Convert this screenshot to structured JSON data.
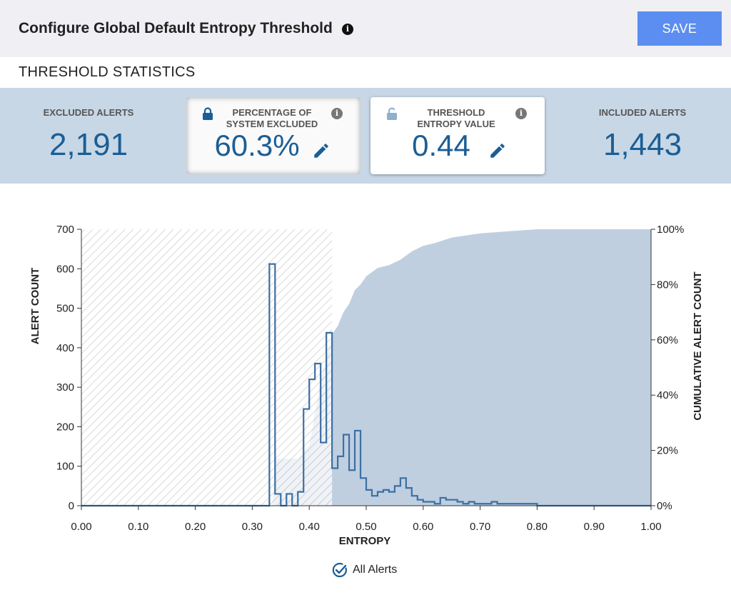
{
  "header": {
    "title": "Configure Global Default Entropy Threshold",
    "save_label": "SAVE"
  },
  "section": {
    "title": "THRESHOLD STATISTICS"
  },
  "stats": {
    "excluded": {
      "label": "EXCLUDED ALERTS",
      "value": "2,191"
    },
    "percentage": {
      "label_line1": "PERCENTAGE OF",
      "label_line2": "SYSTEM EXCLUDED",
      "value": "60.3%"
    },
    "threshold": {
      "label_line1": "THRESHOLD",
      "label_line2": "ENTROPY VALUE",
      "value": "0.44"
    },
    "included": {
      "label": "INCLUDED ALERTS",
      "value": "1,443"
    }
  },
  "colors": {
    "accent": "#1b5e95",
    "save": "#5b8ef0",
    "band": "#c7d7e6",
    "cumulative": "#bfcfe0",
    "histogram": "#3d6fa3"
  },
  "icons": [
    "info-icon",
    "lock-icon",
    "unlock-icon",
    "pencil-icon",
    "check-circle-icon"
  ],
  "legend": {
    "label": "All Alerts"
  },
  "chart_data": {
    "type": "histogram",
    "xlabel": "ENTROPY",
    "ylabel": "ALERT COUNT",
    "y2label": "CUMULATIVE ALERT COUNT",
    "xlim": [
      0,
      1
    ],
    "ylim": [
      0,
      700
    ],
    "y2lim": [
      0,
      100
    ],
    "x_ticks": [
      "0.00",
      "0.10",
      "0.20",
      "0.30",
      "0.40",
      "0.50",
      "0.60",
      "0.70",
      "0.80",
      "0.90",
      "1.00"
    ],
    "y_ticks": [
      "0",
      "100",
      "200",
      "300",
      "400",
      "500",
      "600",
      "700"
    ],
    "y2_ticks": [
      "0%",
      "20%",
      "40%",
      "60%",
      "80%",
      "100%"
    ],
    "threshold": 0.44,
    "excluded_region": [
      0,
      0.44
    ],
    "histogram": {
      "bin_edges": [
        0.0,
        0.33,
        0.34,
        0.35,
        0.36,
        0.37,
        0.38,
        0.39,
        0.4,
        0.41,
        0.42,
        0.43,
        0.44,
        0.45,
        0.46,
        0.47,
        0.48,
        0.49,
        0.5,
        0.51,
        0.52,
        0.53,
        0.54,
        0.55,
        0.56,
        0.57,
        0.58,
        0.59,
        0.6,
        0.61,
        0.62,
        0.63,
        0.64,
        0.65,
        0.66,
        0.67,
        0.68,
        0.69,
        0.7,
        0.71,
        0.72,
        0.73,
        0.74,
        0.75,
        0.76,
        0.77,
        0.78,
        0.79,
        0.8,
        0.85,
        0.9,
        0.95,
        1.0
      ],
      "counts": [
        0,
        612,
        30,
        0,
        30,
        0,
        35,
        245,
        320,
        360,
        160,
        438,
        95,
        125,
        180,
        90,
        190,
        70,
        40,
        25,
        35,
        40,
        35,
        50,
        70,
        45,
        25,
        15,
        10,
        10,
        5,
        20,
        15,
        15,
        10,
        5,
        10,
        5,
        5,
        5,
        10,
        5,
        5,
        5,
        5,
        5,
        5,
        5,
        0,
        0,
        0,
        0
      ]
    },
    "cumulative_percent": {
      "x": [
        0.0,
        0.335,
        0.34,
        0.38,
        0.4,
        0.42,
        0.44,
        0.45,
        0.46,
        0.47,
        0.48,
        0.49,
        0.5,
        0.52,
        0.54,
        0.56,
        0.58,
        0.6,
        0.62,
        0.65,
        0.7,
        0.75,
        0.8,
        0.85,
        0.9,
        1.0
      ],
      "y": [
        0,
        0,
        17,
        17,
        22,
        45,
        62,
        65,
        70,
        73,
        78,
        80,
        83,
        86,
        87,
        89,
        92,
        94,
        95,
        97,
        98.5,
        99.3,
        100,
        100,
        100,
        100
      ]
    }
  }
}
